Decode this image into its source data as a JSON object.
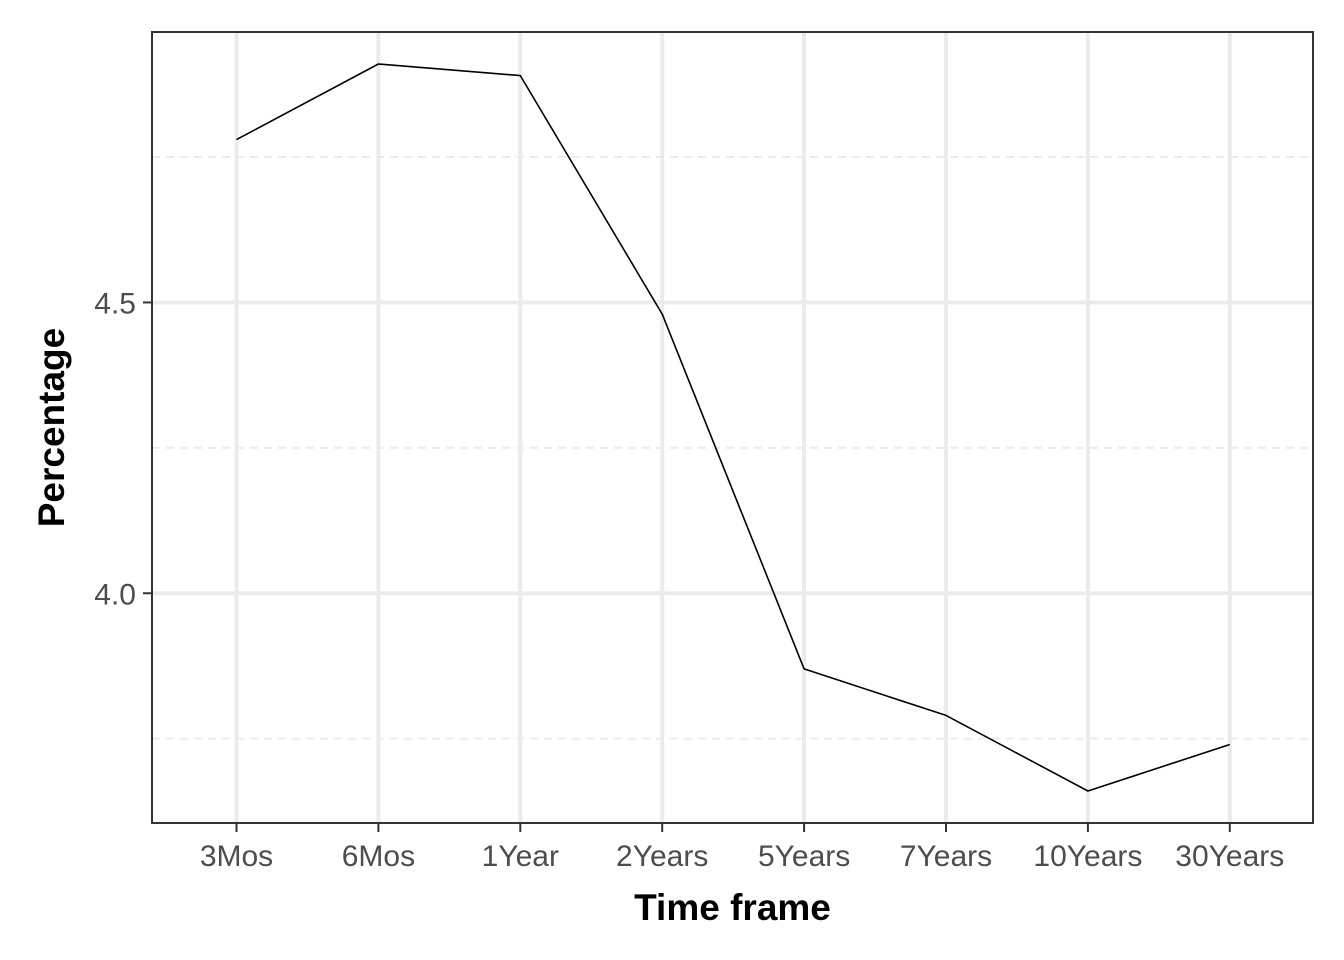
{
  "chart_data": {
    "type": "line",
    "title": "",
    "xlabel": "Time frame",
    "ylabel": "Percentage",
    "categories": [
      "3Mos",
      "6Mos",
      "1Year",
      "2Years",
      "5Years",
      "7Years",
      "10Years",
      "30Years"
    ],
    "series": [
      {
        "values": [
          4.78,
          4.91,
          4.89,
          4.48,
          3.87,
          3.79,
          3.66,
          3.74
        ]
      }
    ],
    "ylim": [
      3.605,
      4.965
    ],
    "yticks": [
      4.0,
      4.5
    ],
    "ytick_labels": [
      "4.0",
      "4.5"
    ],
    "minor_yticks": [
      3.75,
      4.25,
      4.75
    ],
    "grid": true,
    "legend": "none",
    "colors": {
      "line": "#000000",
      "grid": "#ebebeb",
      "panel_border": "#333333",
      "tick_text": "#4d4d4d"
    }
  }
}
